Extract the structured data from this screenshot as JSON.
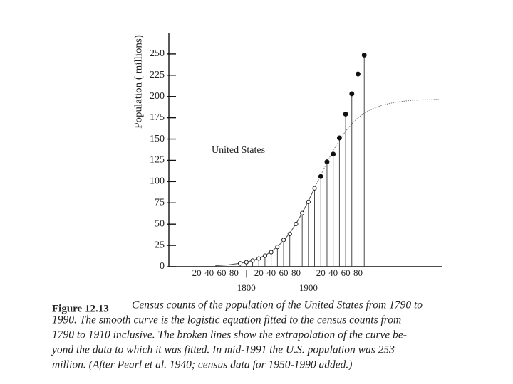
{
  "chart_data": {
    "type": "scatter",
    "ylabel": "Population ( millions)",
    "annotation": "United States",
    "xlim": [
      1675,
      2115
    ],
    "ylim": [
      0,
      275
    ],
    "yticks": [
      0,
      25,
      50,
      75,
      100,
      125,
      150,
      175,
      200,
      225,
      250
    ],
    "xticks": [
      {
        "value": 1720,
        "label": "20"
      },
      {
        "value": 1740,
        "label": "40"
      },
      {
        "value": 1760,
        "label": "60"
      },
      {
        "value": 1780,
        "label": "80"
      },
      {
        "value": 1800,
        "label": "|"
      },
      {
        "value": 1820,
        "label": "20"
      },
      {
        "value": 1840,
        "label": "40"
      },
      {
        "value": 1860,
        "label": "60"
      },
      {
        "value": 1880,
        "label": "80"
      },
      {
        "value": 1920,
        "label": "20"
      },
      {
        "value": 1940,
        "label": "40"
      },
      {
        "value": 1960,
        "label": "60"
      },
      {
        "value": 1980,
        "label": "80"
      }
    ],
    "xperiod_labels": [
      {
        "value": 1800,
        "label": "1800"
      },
      {
        "value": 1900,
        "label": "1900"
      }
    ],
    "drop_lines": true,
    "series": [
      {
        "marker": "curve",
        "color": "#555555",
        "x": [
          1750,
          1770,
          1790,
          1800,
          1810,
          1820,
          1830,
          1840,
          1850,
          1860,
          1870,
          1880,
          1890,
          1900,
          1910
        ],
        "values": [
          1.2,
          2.1,
          4.0,
          5.4,
          7.3,
          9.9,
          13.2,
          17.8,
          23.5,
          30.7,
          39.6,
          50.5,
          63.1,
          77.3,
          92.5
        ]
      },
      {
        "marker": "dotted-curve",
        "color": "#777777",
        "x": [
          1910,
          1920,
          1930,
          1940,
          1950,
          1960,
          1970,
          1980,
          1990,
          2000,
          2020,
          2040,
          2060,
          2080,
          2110
        ],
        "values": [
          92.5,
          107.7,
          122.6,
          136.5,
          148.8,
          159.3,
          167.9,
          175,
          180.3,
          184.5,
          190,
          193.3,
          195,
          196,
          196.6
        ]
      },
      {
        "marker": "open",
        "color": "#111111",
        "x": [
          1790,
          1800,
          1810,
          1820,
          1830,
          1840,
          1850,
          1860,
          1870,
          1880,
          1890,
          1900,
          1910
        ],
        "values": [
          3.9,
          5.3,
          7.2,
          9.6,
          12.9,
          17.1,
          23.2,
          31.4,
          38.6,
          50.2,
          63.0,
          76.2,
          92.2
        ]
      },
      {
        "marker": "filled",
        "color": "#111111",
        "x": [
          1920,
          1930,
          1940,
          1950,
          1960,
          1970,
          1980,
          1990
        ],
        "values": [
          106.0,
          123.2,
          132.2,
          151.3,
          179.3,
          203.2,
          226.5,
          248.7
        ]
      }
    ],
    "caption": {
      "label": "Figure 12.13",
      "lines": [
        "Census counts of the population of the United States from 1790 to",
        "1990. The smooth curve is the logistic equation fitted to the census counts from",
        "1790 to 1910 inclusive. The broken lines show the extrapolation of the curve be-",
        "yond the data to which it was fitted. In mid-1991 the U.S. population was 253",
        "million. (After Pearl et al. 1940; census data for 1950-1990 added.)"
      ]
    }
  }
}
